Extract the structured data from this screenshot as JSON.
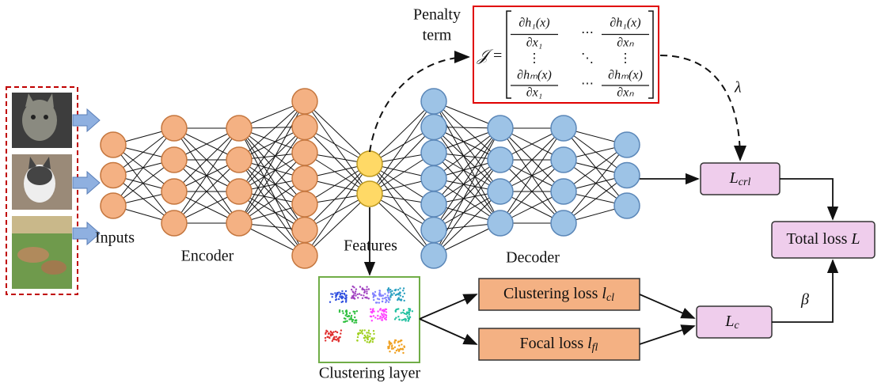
{
  "penalty_label": [
    "Penalty",
    "term"
  ],
  "jacobian": {
    "symbol": "𝒥 =",
    "rows": [
      [
        {
          "num": "∂h₁(x)",
          "den": "∂x₁"
        },
        "⋯",
        {
          "num": "∂h₁(x)",
          "den": "∂xₙ"
        }
      ],
      [
        "⋮",
        "⋱",
        "⋮"
      ],
      [
        {
          "num": "∂hₘ(x)",
          "den": "∂x₁"
        },
        "⋯",
        {
          "num": "∂hₘ(x)",
          "den": "∂xₙ"
        }
      ]
    ]
  },
  "lambda": "λ",
  "beta": "β",
  "labels": {
    "inputs": "Inputs",
    "encoder": "Encoder",
    "features": "Features",
    "decoder": "Decoder",
    "clustering_layer": "Clustering layer"
  },
  "boxes": {
    "crl": {
      "main": "L",
      "sub": "crl"
    },
    "c": {
      "main": "L",
      "sub": "c"
    },
    "total": {
      "text": "Total loss ",
      "main": "L"
    },
    "clustering_loss": {
      "text": "Clustering loss ",
      "main": "l",
      "sub": "cl"
    },
    "focal_loss": {
      "text": "Focal loss ",
      "main": "l",
      "sub": "fl"
    }
  }
}
